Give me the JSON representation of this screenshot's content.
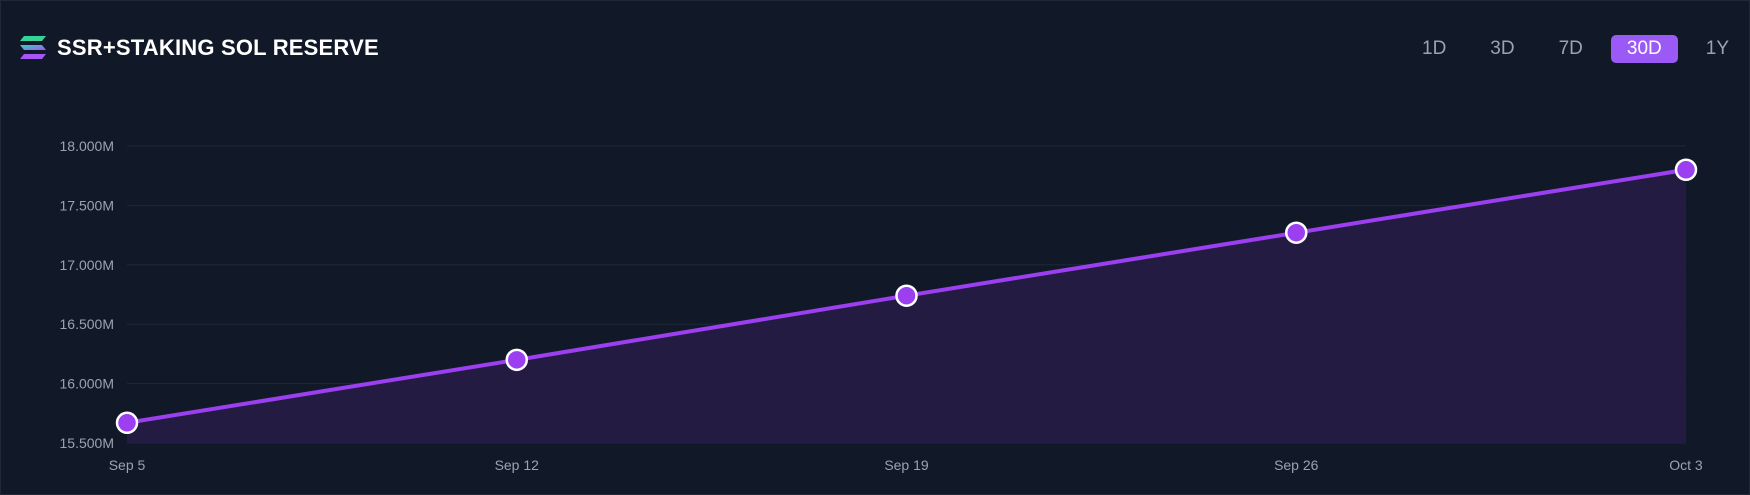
{
  "header": {
    "title": "SSR+STAKING SOL RESERVE",
    "logo_icon": "solana-logo-icon"
  },
  "range_selector": {
    "options": [
      "1D",
      "3D",
      "7D",
      "30D",
      "1Y"
    ],
    "selected": "30D"
  },
  "colors": {
    "background": "#111827",
    "line": "#9b3ff0",
    "point_fill": "#9b3ff0",
    "point_stroke": "#ffffff",
    "area_fill": "#261b45",
    "grid": "#1f2937",
    "tick_text": "#9ca3af",
    "accent": "#9b59f6"
  },
  "chart_data": {
    "type": "area",
    "x": [
      "Sep 5",
      "Sep 12",
      "Sep 19",
      "Sep 26",
      "Oct 3"
    ],
    "values": [
      15.67,
      16.2,
      16.74,
      17.27,
      17.8
    ],
    "y_unit": "M",
    "ylim": [
      15.5,
      18.0
    ],
    "y_ticks": [
      15.5,
      16.0,
      16.5,
      17.0,
      17.5,
      18.0
    ],
    "y_tick_labels": [
      "15.500M",
      "16.000M",
      "16.500M",
      "17.000M",
      "17.500M",
      "18.000M"
    ],
    "x_tick_labels": [
      "Sep 5",
      "Sep 12",
      "Sep 19",
      "Sep 26",
      "Oct 3"
    ],
    "grid": true,
    "legend": false
  }
}
